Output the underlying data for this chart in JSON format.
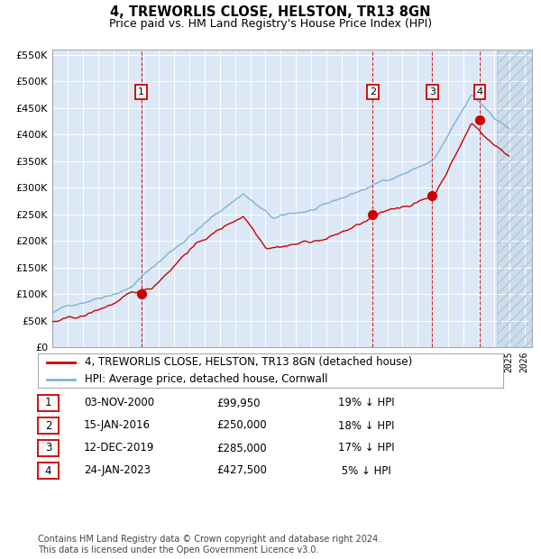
{
  "title": "4, TREWORLIS CLOSE, HELSTON, TR13 8GN",
  "subtitle": "Price paid vs. HM Land Registry's House Price Index (HPI)",
  "yticks": [
    0,
    50000,
    100000,
    150000,
    200000,
    250000,
    300000,
    350000,
    400000,
    450000,
    500000,
    550000
  ],
  "ytick_labels": [
    "£0",
    "£50K",
    "£100K",
    "£150K",
    "£200K",
    "£250K",
    "£300K",
    "£350K",
    "£400K",
    "£450K",
    "£500K",
    "£550K"
  ],
  "sale_dates_num": [
    2000.84,
    2016.04,
    2019.95,
    2023.07
  ],
  "sale_prices": [
    99950,
    250000,
    285000,
    427500
  ],
  "sale_labels": [
    "1",
    "2",
    "3",
    "4"
  ],
  "hpi_color": "#7ab4d8",
  "price_color": "#cc0000",
  "vline_color": "#cc0000",
  "background_color": "#dce8f5",
  "legend_entries": [
    "4, TREWORLIS CLOSE, HELSTON, TR13 8GN (detached house)",
    "HPI: Average price, detached house, Cornwall"
  ],
  "table_rows": [
    {
      "num": "1",
      "date": "03-NOV-2000",
      "price": "£99,950",
      "hpi": "19% ↓ HPI"
    },
    {
      "num": "2",
      "date": "15-JAN-2016",
      "price": "£250,000",
      "hpi": "18% ↓ HPI"
    },
    {
      "num": "3",
      "date": "12-DEC-2019",
      "price": "£285,000",
      "hpi": "17% ↓ HPI"
    },
    {
      "num": "4",
      "date": "24-JAN-2023",
      "price": "£427,500",
      "hpi": " 5% ↓ HPI"
    }
  ],
  "footnote": "Contains HM Land Registry data © Crown copyright and database right 2024.\nThis data is licensed under the Open Government Licence v3.0."
}
